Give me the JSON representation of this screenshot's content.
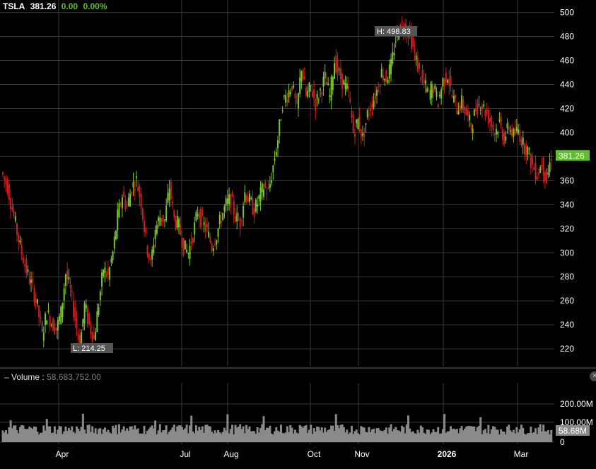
{
  "header": {
    "symbol": "TSLA",
    "price": "381.26",
    "change": "0.00",
    "change_pct": "0.00%"
  },
  "volume_panel": {
    "label": "Volume",
    "value": "58,683,752.00",
    "close_icon": "close-icon"
  },
  "colors": {
    "up": "#7ac62a",
    "down": "#c8201e",
    "volume": "#8a8a8a",
    "grid": "#3a3a3a",
    "price_badge": "#5fbf2f"
  },
  "chart_data": {
    "type": "candlestick",
    "symbol": "TSLA",
    "y_axis": {
      "ticks": [
        220,
        240,
        260,
        280,
        300,
        320,
        340,
        360,
        380,
        400,
        420,
        440,
        460,
        480,
        500
      ],
      "ylim": [
        203,
        508
      ]
    },
    "x_axis": {
      "labels": [
        "Apr",
        "Jul",
        "Aug",
        "Oct",
        "Nov",
        "2026",
        "Mar"
      ]
    },
    "last_price_label": "381.26",
    "high_label": "H: 498.83",
    "low_label": "L: 214.25",
    "close_series": [
      {
        "t": 0,
        "c": 367
      },
      {
        "t": 4,
        "c": 355
      },
      {
        "t": 8,
        "c": 330
      },
      {
        "t": 12,
        "c": 305
      },
      {
        "t": 16,
        "c": 285
      },
      {
        "t": 20,
        "c": 270
      },
      {
        "t": 23,
        "c": 255
      },
      {
        "t": 26,
        "c": 232
      },
      {
        "t": 29,
        "c": 250
      },
      {
        "t": 32,
        "c": 242
      },
      {
        "t": 35,
        "c": 236
      },
      {
        "t": 38,
        "c": 250
      },
      {
        "t": 41,
        "c": 283
      },
      {
        "t": 44,
        "c": 268
      },
      {
        "t": 47,
        "c": 245
      },
      {
        "t": 50,
        "c": 222
      },
      {
        "t": 53,
        "c": 256
      },
      {
        "t": 56,
        "c": 240
      },
      {
        "t": 59,
        "c": 228
      },
      {
        "t": 62,
        "c": 258
      },
      {
        "t": 65,
        "c": 287
      },
      {
        "t": 68,
        "c": 280
      },
      {
        "t": 71,
        "c": 300
      },
      {
        "t": 74,
        "c": 330
      },
      {
        "t": 77,
        "c": 348
      },
      {
        "t": 80,
        "c": 338
      },
      {
        "t": 83,
        "c": 355
      },
      {
        "t": 86,
        "c": 360
      },
      {
        "t": 89,
        "c": 342
      },
      {
        "t": 92,
        "c": 310
      },
      {
        "t": 95,
        "c": 290
      },
      {
        "t": 98,
        "c": 320
      },
      {
        "t": 101,
        "c": 330
      },
      {
        "t": 104,
        "c": 327
      },
      {
        "t": 107,
        "c": 355
      },
      {
        "t": 110,
        "c": 328
      },
      {
        "t": 113,
        "c": 322
      },
      {
        "t": 116,
        "c": 305
      },
      {
        "t": 119,
        "c": 300
      },
      {
        "t": 122,
        "c": 315
      },
      {
        "t": 125,
        "c": 335
      },
      {
        "t": 128,
        "c": 325
      },
      {
        "t": 131,
        "c": 318
      },
      {
        "t": 134,
        "c": 305
      },
      {
        "t": 137,
        "c": 315
      },
      {
        "t": 140,
        "c": 330
      },
      {
        "t": 143,
        "c": 340
      },
      {
        "t": 146,
        "c": 345
      },
      {
        "t": 149,
        "c": 330
      },
      {
        "t": 152,
        "c": 325
      },
      {
        "t": 155,
        "c": 350
      },
      {
        "t": 158,
        "c": 343
      },
      {
        "t": 161,
        "c": 335
      },
      {
        "t": 164,
        "c": 345
      },
      {
        "t": 167,
        "c": 355
      },
      {
        "t": 170,
        "c": 350
      },
      {
        "t": 173,
        "c": 372
      },
      {
        "t": 176,
        "c": 395
      },
      {
        "t": 179,
        "c": 425
      },
      {
        "t": 182,
        "c": 432
      },
      {
        "t": 185,
        "c": 440
      },
      {
        "t": 188,
        "c": 418
      },
      {
        "t": 191,
        "c": 455
      },
      {
        "t": 194,
        "c": 430
      },
      {
        "t": 197,
        "c": 438
      },
      {
        "t": 200,
        "c": 424
      },
      {
        "t": 203,
        "c": 435
      },
      {
        "t": 206,
        "c": 445
      },
      {
        "t": 209,
        "c": 430
      },
      {
        "t": 212,
        "c": 460
      },
      {
        "t": 215,
        "c": 448
      },
      {
        "t": 218,
        "c": 440
      },
      {
        "t": 221,
        "c": 433
      },
      {
        "t": 224,
        "c": 400
      },
      {
        "t": 227,
        "c": 410
      },
      {
        "t": 230,
        "c": 395
      },
      {
        "t": 233,
        "c": 415
      },
      {
        "t": 236,
        "c": 425
      },
      {
        "t": 239,
        "c": 435
      },
      {
        "t": 242,
        "c": 450
      },
      {
        "t": 245,
        "c": 445
      },
      {
        "t": 248,
        "c": 455
      },
      {
        "t": 251,
        "c": 478
      },
      {
        "t": 254,
        "c": 490
      },
      {
        "t": 257,
        "c": 488
      },
      {
        "t": 260,
        "c": 482
      },
      {
        "t": 263,
        "c": 465
      },
      {
        "t": 266,
        "c": 450
      },
      {
        "t": 269,
        "c": 440
      },
      {
        "t": 272,
        "c": 432
      },
      {
        "t": 275,
        "c": 438
      },
      {
        "t": 278,
        "c": 425
      },
      {
        "t": 281,
        "c": 443
      },
      {
        "t": 284,
        "c": 448
      },
      {
        "t": 287,
        "c": 430
      },
      {
        "t": 290,
        "c": 420
      },
      {
        "t": 293,
        "c": 425
      },
      {
        "t": 296,
        "c": 415
      },
      {
        "t": 299,
        "c": 405
      },
      {
        "t": 302,
        "c": 420
      },
      {
        "t": 305,
        "c": 425
      },
      {
        "t": 308,
        "c": 418
      },
      {
        "t": 311,
        "c": 410
      },
      {
        "t": 314,
        "c": 400
      },
      {
        "t": 317,
        "c": 408
      },
      {
        "t": 320,
        "c": 395
      },
      {
        "t": 323,
        "c": 405
      },
      {
        "t": 326,
        "c": 398
      },
      {
        "t": 329,
        "c": 402
      },
      {
        "t": 332,
        "c": 390
      },
      {
        "t": 335,
        "c": 385
      },
      {
        "t": 338,
        "c": 372
      },
      {
        "t": 341,
        "c": 365
      },
      {
        "t": 344,
        "c": 375
      },
      {
        "t": 347,
        "c": 360
      },
      {
        "t": 350,
        "c": 381.26
      }
    ],
    "volume": {
      "ticks": [
        "0",
        "100.00M",
        "200.00M"
      ],
      "last_value_label": "58.68M",
      "avg_millions": 70
    }
  }
}
